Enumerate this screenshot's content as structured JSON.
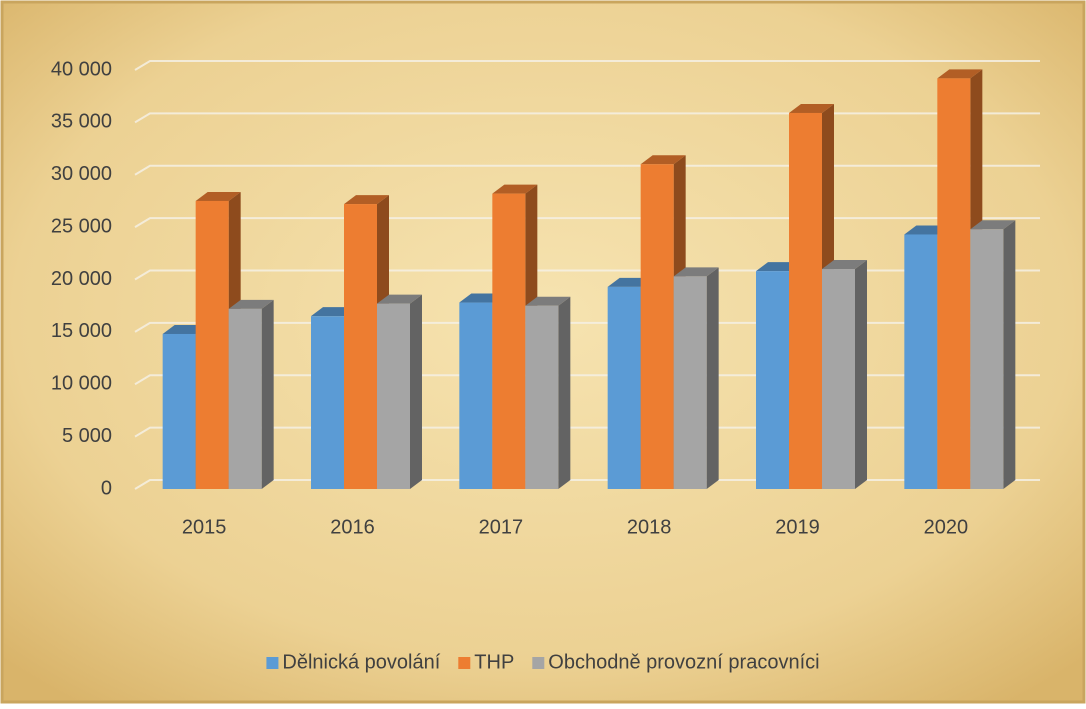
{
  "chart_data": {
    "type": "bar3d",
    "categories": [
      "2015",
      "2016",
      "2017",
      "2018",
      "2019",
      "2020"
    ],
    "series": [
      {
        "name": "Dělnická povolání",
        "color": "#5b9bd5",
        "values": [
          14800,
          16500,
          17800,
          19300,
          20800,
          24300
        ]
      },
      {
        "name": "THP",
        "color": "#ed7d31",
        "values": [
          27500,
          27200,
          28200,
          31000,
          35900,
          39200
        ]
      },
      {
        "name": "Obchodně provozní pracovníci",
        "color": "#a5a5a5",
        "values": [
          17200,
          17700,
          17500,
          20300,
          21000,
          24800
        ]
      }
    ],
    "ylim": [
      0,
      40000
    ],
    "yticks": [
      0,
      {
        "value": 5000,
        "label": "5 000"
      },
      {
        "value": 10000,
        "label": "10 000"
      },
      {
        "value": 15000,
        "label": "15 000"
      },
      {
        "value": 20000,
        "label": "20 000"
      },
      {
        "value": 25000,
        "label": "25 000"
      },
      {
        "value": 30000,
        "label": "30 000"
      },
      {
        "value": 35000,
        "label": "35 000"
      },
      {
        "value": 40000,
        "label": "40 000"
      }
    ],
    "grid": true,
    "legend": "bottom"
  }
}
